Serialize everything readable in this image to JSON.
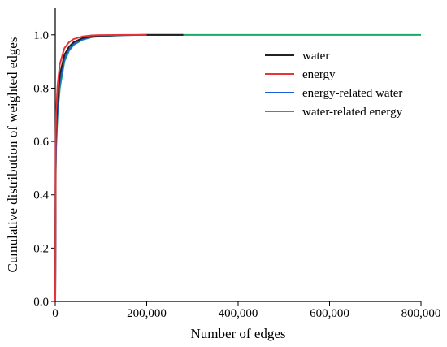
{
  "chart_data": {
    "type": "line",
    "title": "",
    "xlabel": "Number of edges",
    "ylabel": "Cumulative distribution of weighted edges",
    "xlim": [
      0,
      800000
    ],
    "ylim": [
      0,
      1.1
    ],
    "xticks": [
      0,
      200000,
      400000,
      600000,
      800000
    ],
    "xtick_labels": [
      "0",
      "200,000",
      "400,000",
      "600,000",
      "800,000"
    ],
    "yticks": [
      0.0,
      0.2,
      0.4,
      0.6,
      0.8,
      1.0
    ],
    "ytick_labels": [
      "0.0",
      "0.2",
      "0.4",
      "0.6",
      "0.8",
      "1.0"
    ],
    "grid": false,
    "legend_position": "top-right",
    "series": [
      {
        "name": "water",
        "color": "#222222",
        "x": [
          0,
          1000,
          2000,
          5000,
          10000,
          20000,
          30000,
          40000,
          60000,
          80000,
          100000,
          150000,
          200000,
          280000
        ],
        "y": [
          0.0,
          0.58,
          0.66,
          0.76,
          0.85,
          0.925,
          0.955,
          0.972,
          0.988,
          0.994,
          0.997,
          0.999,
          1.0,
          1.0
        ]
      },
      {
        "name": "energy",
        "color": "#e8333a",
        "x": [
          0,
          1000,
          2000,
          5000,
          10000,
          20000,
          30000,
          40000,
          60000,
          80000,
          100000,
          150000,
          200000
        ],
        "y": [
          0.0,
          0.62,
          0.71,
          0.81,
          0.89,
          0.95,
          0.972,
          0.984,
          0.994,
          0.998,
          0.999,
          1.0,
          1.0
        ]
      },
      {
        "name": "energy-related water",
        "color": "#1f5fd6",
        "x": [
          0,
          1000,
          2000,
          5000,
          10000,
          20000,
          30000,
          40000,
          60000,
          80000,
          100000,
          150000,
          200000,
          280000
        ],
        "y": [
          0.0,
          0.5,
          0.6,
          0.72,
          0.82,
          0.91,
          0.945,
          0.965,
          0.984,
          0.992,
          0.996,
          0.999,
          1.0,
          1.0
        ]
      },
      {
        "name": "water-related energy",
        "color": "#1aab6a",
        "x": [
          0,
          1000,
          2000,
          5000,
          10000,
          20000,
          30000,
          40000,
          60000,
          80000,
          100000,
          150000,
          200000,
          400000,
          600000,
          800000
        ],
        "y": [
          0.0,
          0.48,
          0.58,
          0.7,
          0.8,
          0.9,
          0.94,
          0.962,
          0.982,
          0.991,
          0.995,
          0.999,
          1.0,
          1.0,
          1.0,
          1.0
        ]
      }
    ]
  }
}
